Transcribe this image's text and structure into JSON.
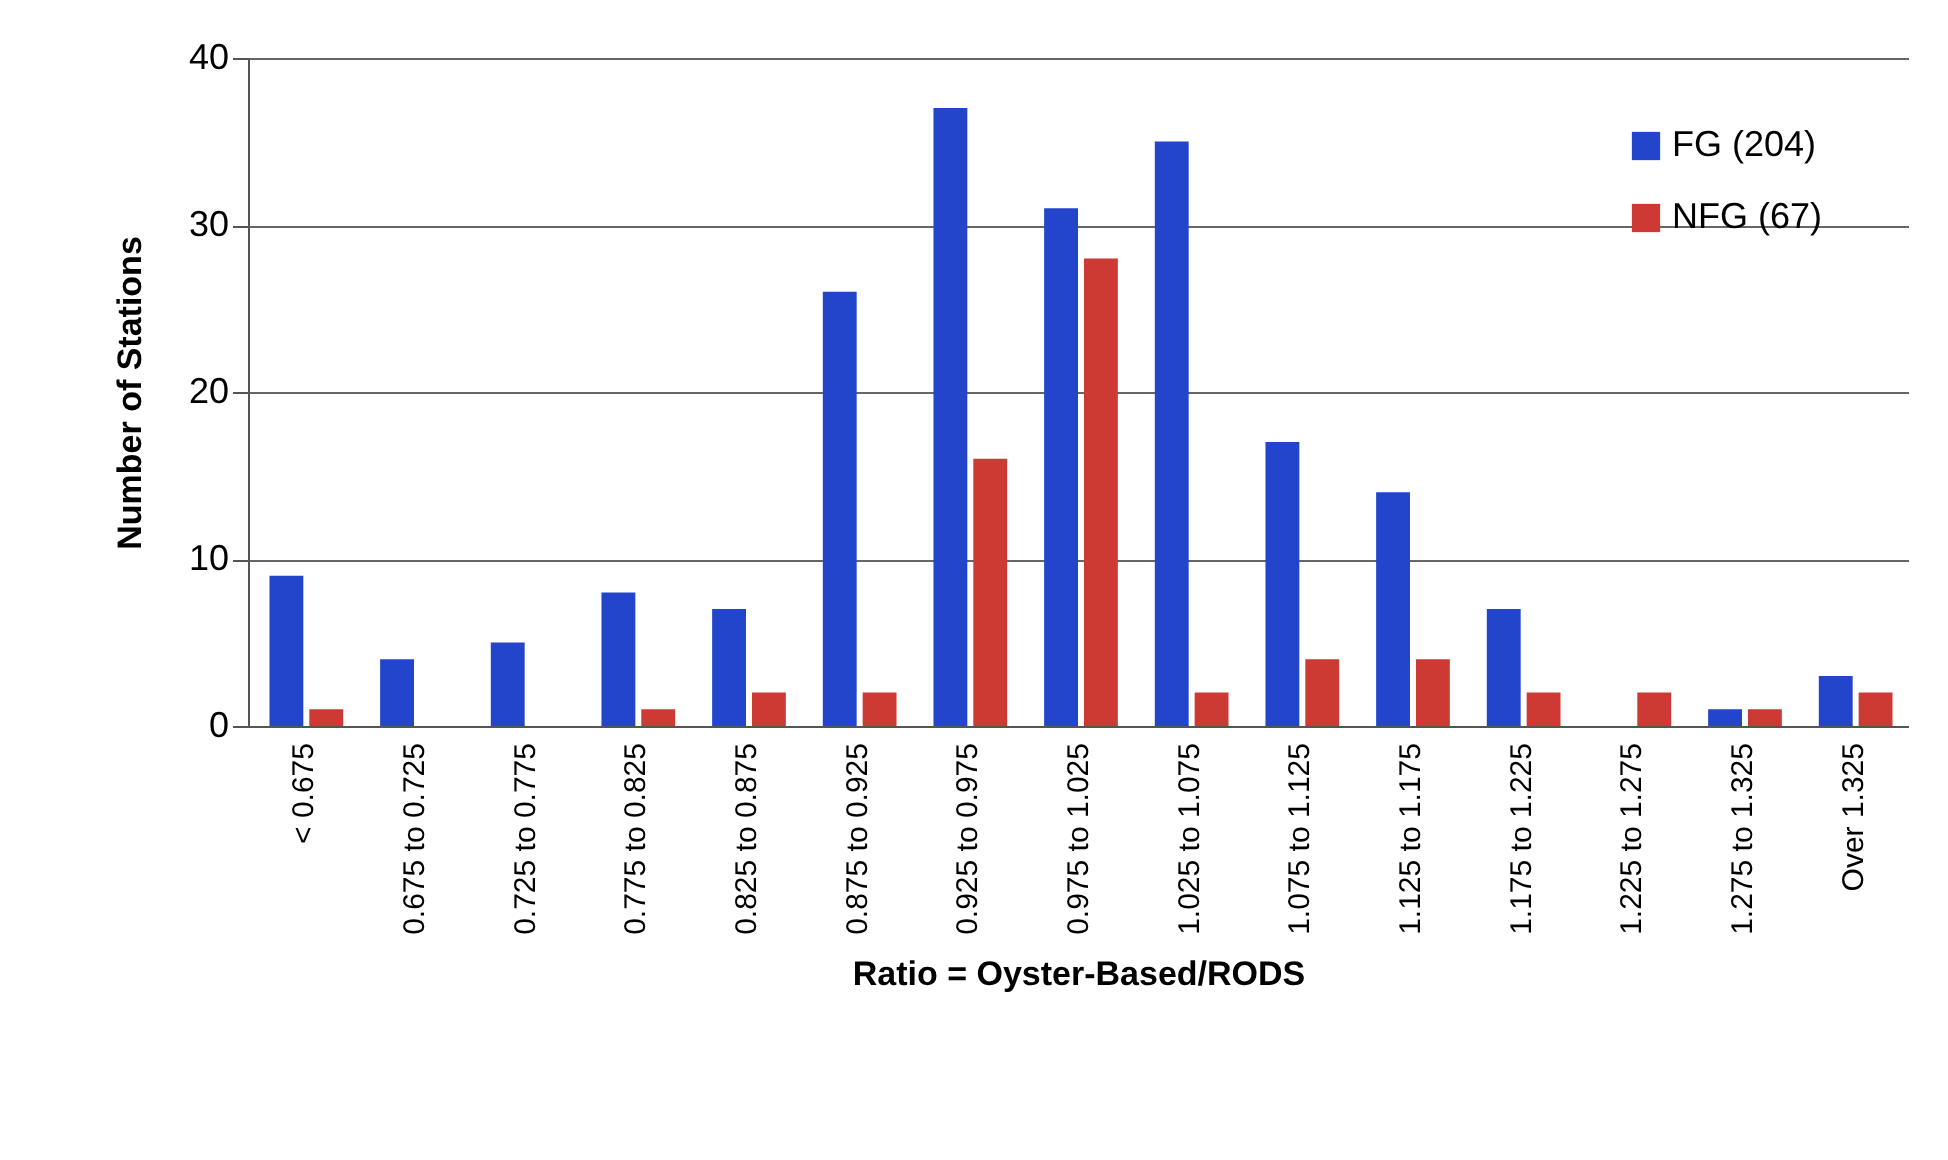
{
  "chart_data": {
    "type": "bar",
    "xlabel": "Ratio = Oyster-Based/RODS",
    "ylabel": "Number of Stations",
    "categories": [
      "< 0.675",
      "0.675 to 0.725",
      "0.725 to 0.775",
      "0.775 to 0.825",
      "0.825 to 0.875",
      "0.875 to 0.925",
      "0.925 to 0.975",
      "0.975 to 1.025",
      "1.025 to 1.075",
      "1.075 to 1.125",
      "1.125 to 1.175",
      "1.175 to 1.225",
      "1.225 to 1.275",
      "1.275 to 1.325",
      "Over 1.325"
    ],
    "series": [
      {
        "name": "FG (204)",
        "color": "#2245cc",
        "values": [
          9,
          4,
          5,
          8,
          7,
          26,
          37,
          31,
          35,
          17,
          14,
          7,
          0,
          1,
          3
        ]
      },
      {
        "name": "NFG (67)",
        "color": "#cc3a33",
        "values": [
          1,
          0,
          0,
          1,
          2,
          2,
          16,
          28,
          2,
          4,
          4,
          2,
          2,
          1,
          2
        ]
      }
    ],
    "ylim": [
      0,
      40
    ],
    "yticks": [
      0,
      10,
      20,
      30,
      40
    ],
    "grid": "y",
    "legend": "top right"
  }
}
